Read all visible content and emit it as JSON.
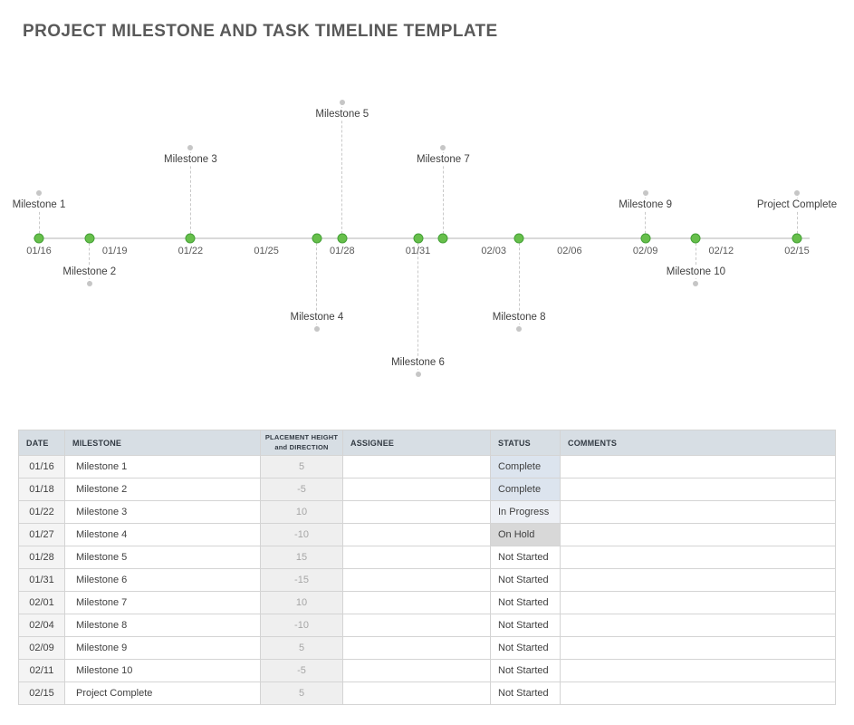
{
  "title": "PROJECT MILESTONE AND TASK TIMELINE TEMPLATE",
  "timeline": {
    "axis_ticks": [
      "01/16",
      "01/19",
      "01/22",
      "01/25",
      "01/28",
      "01/31",
      "02/03",
      "02/06",
      "02/09",
      "02/12",
      "02/15"
    ],
    "milestones": [
      {
        "label": "Milestone 1",
        "date": "01/16",
        "height": 5
      },
      {
        "label": "Milestone 2",
        "date": "01/18",
        "height": -5
      },
      {
        "label": "Milestone 3",
        "date": "01/22",
        "height": 10
      },
      {
        "label": "Milestone 4",
        "date": "01/27",
        "height": -10
      },
      {
        "label": "Milestone 5",
        "date": "01/28",
        "height": 15
      },
      {
        "label": "Milestone 6",
        "date": "01/31",
        "height": -15
      },
      {
        "label": "Milestone 7",
        "date": "02/01",
        "height": 10
      },
      {
        "label": "Milestone 8",
        "date": "02/04",
        "height": -10
      },
      {
        "label": "Milestone 9",
        "date": "02/09",
        "height": 5
      },
      {
        "label": "Milestone 10",
        "date": "02/11",
        "height": -5
      },
      {
        "label": "Project Complete",
        "date": "02/15",
        "height": 5
      }
    ],
    "colors": {
      "marker_fill": "#67bf4b",
      "marker_border": "#43a035",
      "axis_line": "#d9d9d9",
      "dash_line": "#c9c9c9",
      "endpoint_dot": "#c6c6c6"
    }
  },
  "table": {
    "headers": [
      {
        "label": "DATE",
        "key": "date"
      },
      {
        "label": "MILESTONE",
        "key": "milestone"
      },
      {
        "label": "PLACEMENT HEIGHT\nand DIRECTION",
        "key": "height"
      },
      {
        "label": "ASSIGNEE",
        "key": "assignee"
      },
      {
        "label": "STATUS",
        "key": "status"
      },
      {
        "label": "COMMENTS",
        "key": "comments"
      }
    ],
    "rows": [
      {
        "date": "01/16",
        "milestone": "Milestone 1",
        "height": "5",
        "assignee": "",
        "status": "Complete",
        "comments": ""
      },
      {
        "date": "01/18",
        "milestone": "Milestone 2",
        "height": "-5",
        "assignee": "",
        "status": "Complete",
        "comments": ""
      },
      {
        "date": "01/22",
        "milestone": "Milestone 3",
        "height": "10",
        "assignee": "",
        "status": "In Progress",
        "comments": ""
      },
      {
        "date": "01/27",
        "milestone": "Milestone 4",
        "height": "-10",
        "assignee": "",
        "status": "On Hold",
        "comments": ""
      },
      {
        "date": "01/28",
        "milestone": "Milestone 5",
        "height": "15",
        "assignee": "",
        "status": "Not Started",
        "comments": ""
      },
      {
        "date": "01/31",
        "milestone": "Milestone 6",
        "height": "-15",
        "assignee": "",
        "status": "Not Started",
        "comments": ""
      },
      {
        "date": "02/01",
        "milestone": "Milestone 7",
        "height": "10",
        "assignee": "",
        "status": "Not Started",
        "comments": ""
      },
      {
        "date": "02/04",
        "milestone": "Milestone 8",
        "height": "-10",
        "assignee": "",
        "status": "Not Started",
        "comments": ""
      },
      {
        "date": "02/09",
        "milestone": "Milestone 9",
        "height": "5",
        "assignee": "",
        "status": "Not Started",
        "comments": ""
      },
      {
        "date": "02/11",
        "milestone": "Milestone 10",
        "height": "-5",
        "assignee": "",
        "status": "Not Started",
        "comments": ""
      },
      {
        "date": "02/15",
        "milestone": "Project Complete",
        "height": "5",
        "assignee": "",
        "status": "Not Started",
        "comments": ""
      }
    ],
    "status_colors": {
      "Complete": "#dce4ee",
      "In Progress": "#edf0f5",
      "On Hold": "#d8d8d8",
      "Not Started": "#ffffff"
    }
  }
}
